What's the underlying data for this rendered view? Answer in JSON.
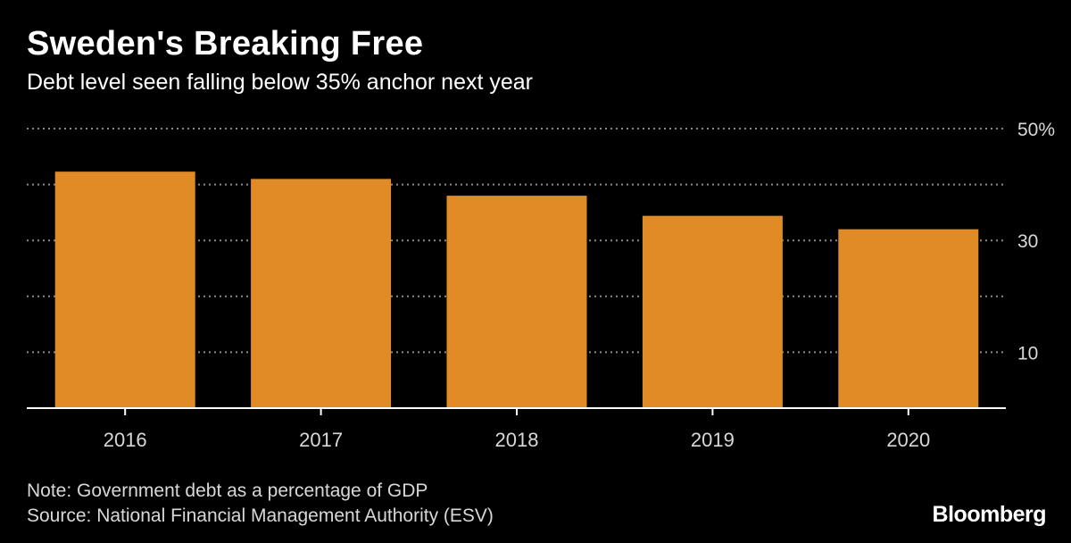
{
  "header": {
    "title": "Sweden's Breaking Free",
    "subtitle": "Debt level seen falling below 35% anchor next year"
  },
  "footer": {
    "note": "Note: Government debt as a percentage of GDP",
    "source": "Source: National Financial Management Authority (ESV)",
    "brand": "Bloomberg"
  },
  "colors": {
    "bar": "#e08b26",
    "grid": "#8a8a8a",
    "axis": "#ffffff",
    "background": "#000000"
  },
  "chart_data": {
    "type": "bar",
    "title": "Sweden's Breaking Free",
    "subtitle": "Debt level seen falling below 35% anchor next year",
    "categories": [
      "2016",
      "2017",
      "2018",
      "2019",
      "2020"
    ],
    "values": [
      42.3,
      41.0,
      38.0,
      34.4,
      32.0
    ],
    "ylim": [
      0,
      50
    ],
    "yticks": [
      0,
      10,
      20,
      30,
      40,
      50
    ],
    "ytick_labels": [
      "",
      "10",
      "",
      "30",
      "",
      "50%"
    ],
    "y_axis_side": "right",
    "grid": true
  }
}
